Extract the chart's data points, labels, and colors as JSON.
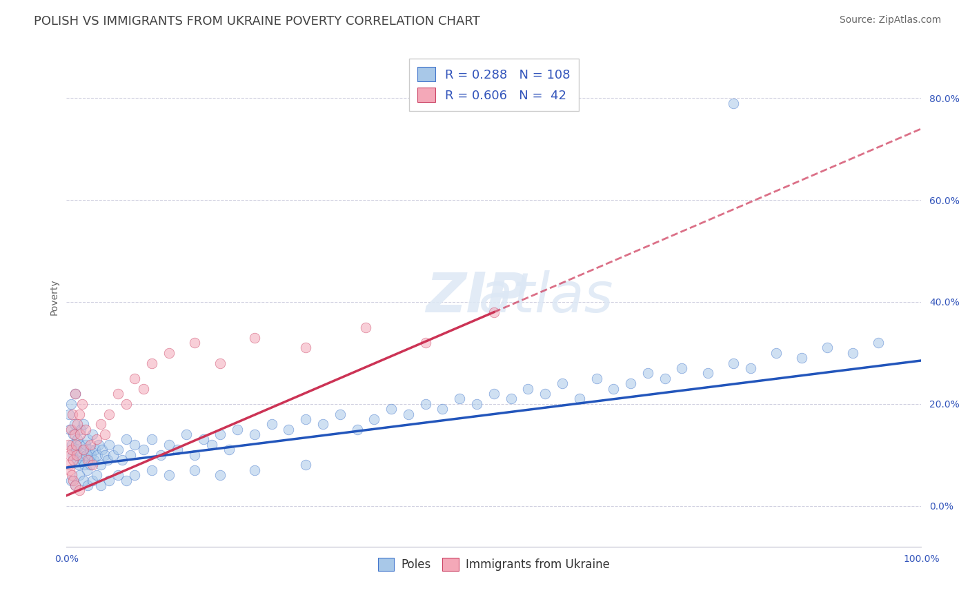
{
  "title": "POLISH VS IMMIGRANTS FROM UKRAINE POVERTY CORRELATION CHART",
  "source_text": "Source: ZipAtlas.com",
  "ylabel": "Poverty",
  "watermark_top": "ZIP",
  "watermark_bottom": "atlas",
  "xlim": [
    0.0,
    100.0
  ],
  "ylim": [
    -8.0,
    90.0
  ],
  "ytick_labels": [
    "0.0%",
    "20.0%",
    "40.0%",
    "60.0%",
    "80.0%"
  ],
  "ytick_values": [
    0,
    20,
    40,
    60,
    80
  ],
  "blue_color": "#a8c8e8",
  "pink_color": "#f4a8b8",
  "blue_edge_color": "#4477cc",
  "pink_edge_color": "#cc4466",
  "blue_line_color": "#2255bb",
  "pink_line_color": "#cc3355",
  "grid_color": "#d0d0e0",
  "legend_R_blue": "0.288",
  "legend_N_blue": "108",
  "legend_R_pink": "0.606",
  "legend_N_pink": "42",
  "blue_line_x0": 0.0,
  "blue_line_y0": 7.5,
  "blue_line_x1": 100.0,
  "blue_line_y1": 28.5,
  "pink_solid_x0": 0.0,
  "pink_solid_y0": 2.0,
  "pink_solid_x1": 50.0,
  "pink_solid_y1": 38.0,
  "pink_dash_x0": 50.0,
  "pink_dash_y0": 38.0,
  "pink_dash_x1": 100.0,
  "pink_dash_y1": 74.0,
  "title_fontsize": 13,
  "axis_label_fontsize": 10,
  "tick_fontsize": 10,
  "legend_fontsize": 13,
  "source_fontsize": 10,
  "blue_scatter_x": [
    0.3,
    0.4,
    0.5,
    0.6,
    0.7,
    0.8,
    0.9,
    1.0,
    1.1,
    1.2,
    1.3,
    1.4,
    1.5,
    1.6,
    1.7,
    1.8,
    1.9,
    2.0,
    2.1,
    2.2,
    2.3,
    2.4,
    2.5,
    2.6,
    2.7,
    2.8,
    2.9,
    3.0,
    3.2,
    3.4,
    3.6,
    3.8,
    4.0,
    4.2,
    4.5,
    4.8,
    5.0,
    5.5,
    6.0,
    6.5,
    7.0,
    7.5,
    8.0,
    9.0,
    10.0,
    11.0,
    12.0,
    13.0,
    14.0,
    15.0,
    16.0,
    17.0,
    18.0,
    19.0,
    20.0,
    22.0,
    24.0,
    26.0,
    28.0,
    30.0,
    32.0,
    34.0,
    36.0,
    38.0,
    40.0,
    42.0,
    44.0,
    46.0,
    48.0,
    50.0,
    52.0,
    54.0,
    56.0,
    58.0,
    60.0,
    62.0,
    64.0,
    66.0,
    68.0,
    70.0,
    72.0,
    75.0,
    78.0,
    80.0,
    83.0,
    86.0,
    89.0,
    92.0,
    95.0,
    78.0,
    0.5,
    1.0,
    1.5,
    2.0,
    2.5,
    3.0,
    3.5,
    4.0,
    5.0,
    6.0,
    7.0,
    8.0,
    10.0,
    12.0,
    15.0,
    18.0,
    22.0,
    28.0
  ],
  "blue_scatter_y": [
    18.0,
    15.0,
    20.0,
    12.0,
    10.0,
    14.0,
    16.0,
    22.0,
    11.0,
    9.0,
    13.0,
    8.0,
    12.0,
    10.0,
    15.0,
    9.0,
    11.0,
    16.0,
    8.0,
    12.0,
    10.0,
    7.0,
    13.0,
    9.0,
    11.0,
    8.0,
    10.0,
    14.0,
    9.0,
    11.0,
    10.0,
    12.0,
    8.0,
    11.0,
    10.0,
    9.0,
    12.0,
    10.0,
    11.0,
    9.0,
    13.0,
    10.0,
    12.0,
    11.0,
    13.0,
    10.0,
    12.0,
    11.0,
    14.0,
    10.0,
    13.0,
    12.0,
    14.0,
    11.0,
    15.0,
    14.0,
    16.0,
    15.0,
    17.0,
    16.0,
    18.0,
    15.0,
    17.0,
    19.0,
    18.0,
    20.0,
    19.0,
    21.0,
    20.0,
    22.0,
    21.0,
    23.0,
    22.0,
    24.0,
    21.0,
    25.0,
    23.0,
    24.0,
    26.0,
    25.0,
    27.0,
    26.0,
    28.0,
    27.0,
    30.0,
    29.0,
    31.0,
    30.0,
    32.0,
    79.0,
    5.0,
    4.0,
    6.0,
    5.0,
    4.0,
    5.0,
    6.0,
    4.0,
    5.0,
    6.0,
    5.0,
    6.0,
    7.0,
    6.0,
    7.0,
    6.0,
    7.0,
    8.0
  ],
  "pink_scatter_x": [
    0.2,
    0.3,
    0.4,
    0.5,
    0.6,
    0.7,
    0.8,
    0.9,
    1.0,
    1.1,
    1.2,
    1.3,
    1.5,
    1.6,
    1.8,
    2.0,
    2.2,
    2.5,
    2.8,
    3.0,
    3.5,
    4.0,
    4.5,
    5.0,
    6.0,
    7.0,
    8.0,
    9.0,
    10.0,
    12.0,
    15.0,
    18.0,
    22.0,
    28.0,
    35.0,
    42.0,
    50.0,
    0.4,
    0.6,
    0.8,
    1.0,
    1.5
  ],
  "pink_scatter_y": [
    12.0,
    8.0,
    10.0,
    15.0,
    11.0,
    18.0,
    9.0,
    14.0,
    22.0,
    12.0,
    10.0,
    16.0,
    18.0,
    14.0,
    20.0,
    11.0,
    15.0,
    9.0,
    12.0,
    8.0,
    13.0,
    16.0,
    14.0,
    18.0,
    22.0,
    20.0,
    25.0,
    23.0,
    28.0,
    30.0,
    32.0,
    28.0,
    33.0,
    31.0,
    35.0,
    32.0,
    38.0,
    7.0,
    6.0,
    5.0,
    4.0,
    3.0
  ]
}
